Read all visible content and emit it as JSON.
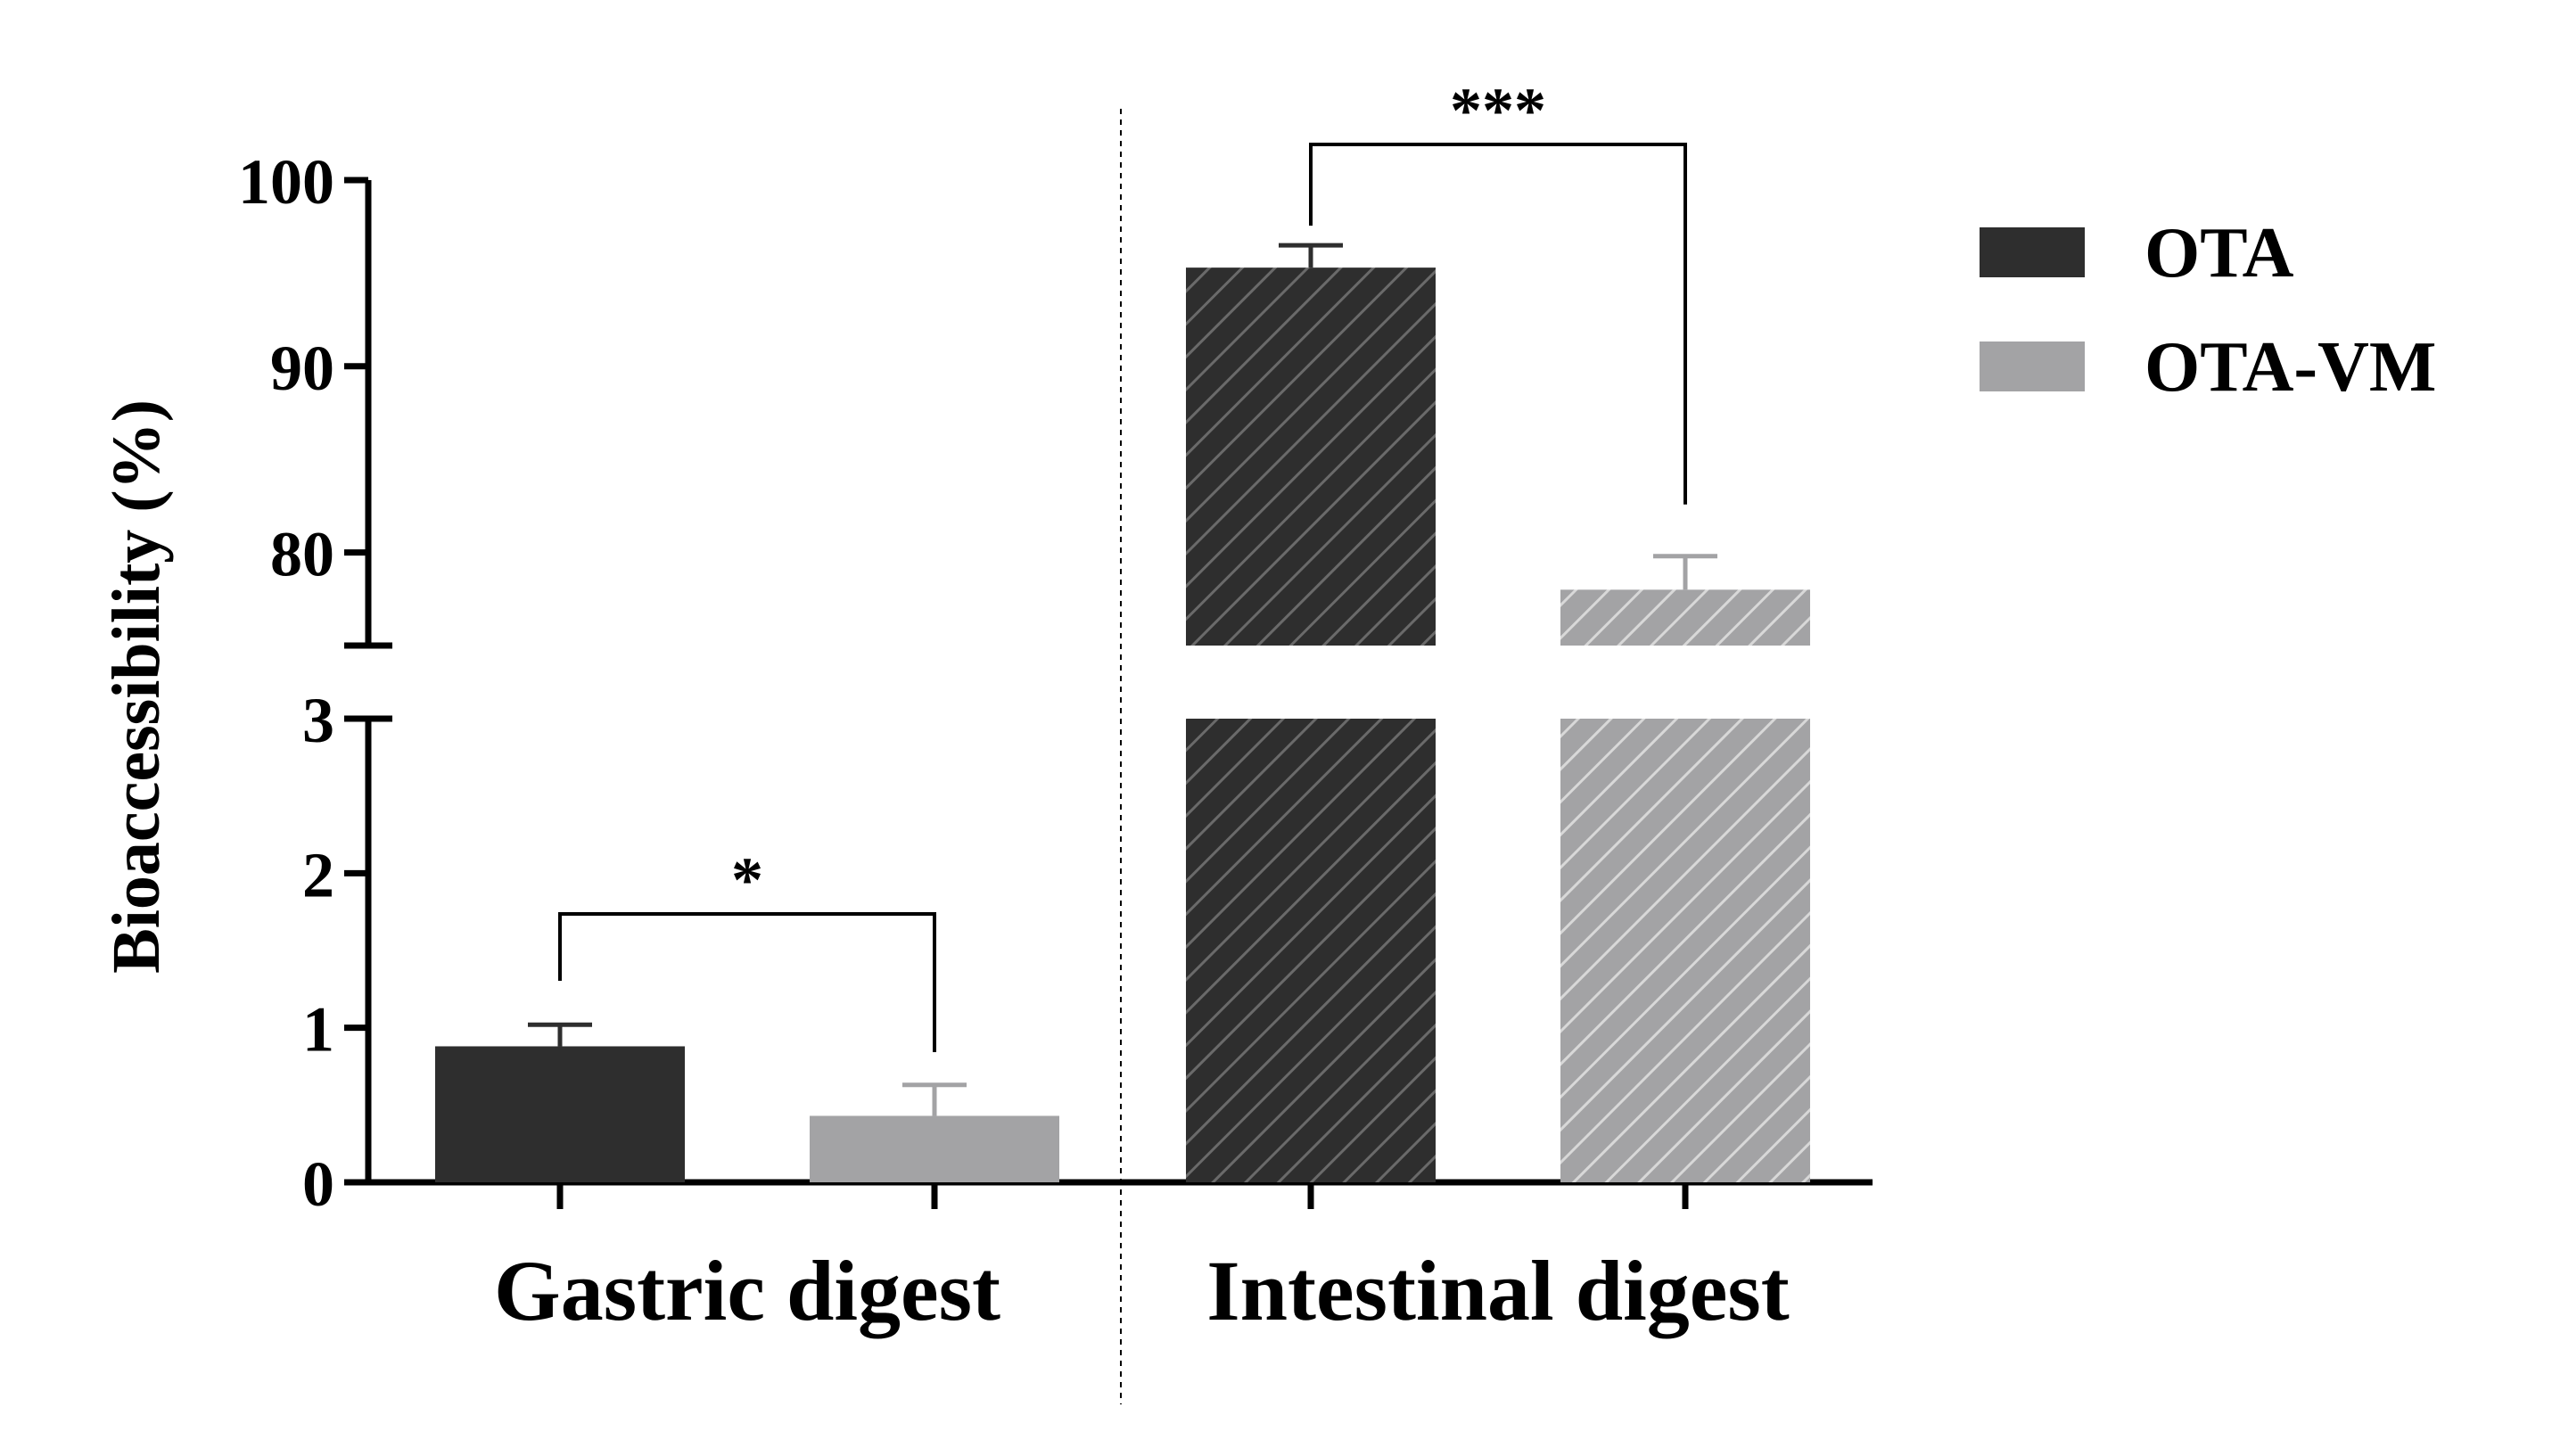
{
  "chart_data": {
    "type": "bar",
    "ylabel": "Bioaccessibility (%)",
    "categories": [
      "Gastric digest",
      "Intestinal digest"
    ],
    "series": [
      {
        "name": "OTA",
        "color": "#2e2e2e",
        "values": [
          0.88,
          95.3
        ],
        "errors": [
          0.14,
          1.2
        ]
      },
      {
        "name": "OTA-VM",
        "color": "#a3a3a5",
        "values": [
          0.43,
          78.0
        ],
        "errors": [
          0.2,
          1.8
        ]
      }
    ],
    "axis_break": {
      "lower_segment": {
        "ylim": [
          0,
          3
        ],
        "ticks": [
          0,
          1,
          2,
          3
        ]
      },
      "upper_segment": {
        "ylim": [
          75,
          100
        ],
        "ticks": [
          80,
          90,
          100
        ]
      }
    },
    "hatched_category": "Intestinal digest",
    "significance": [
      {
        "category": "Gastric digest",
        "label": "*"
      },
      {
        "category": "Intestinal digest",
        "label": "***"
      }
    ],
    "legend": {
      "position": "right",
      "entries": [
        "OTA",
        "OTA-VM"
      ]
    }
  }
}
